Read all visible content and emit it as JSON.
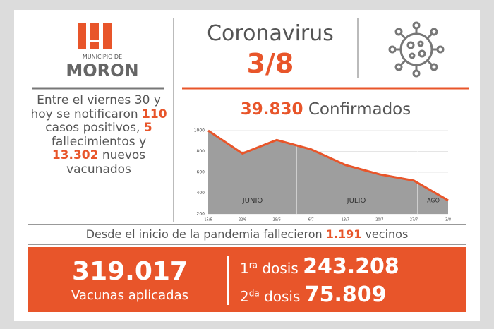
{
  "logo": {
    "small": "MUNICIPIO DE",
    "name": "MORON"
  },
  "header": {
    "title": "Coronavirus",
    "date": "3/8"
  },
  "summary": {
    "t1": "Entre el viernes 30 y hoy se notificaron ",
    "cases": "110",
    "t2": " casos positivos, ",
    "deaths": "5",
    "t3": " fallecimientos y ",
    "vaccinated": "13.302",
    "t4": " nuevos vacunados"
  },
  "confirmed": {
    "value": "39.830",
    "label": "Confirmados"
  },
  "chart": {
    "type": "line",
    "categories": [
      "15/6",
      "22/6",
      "29/6",
      "6/7",
      "13/7",
      "20/7",
      "27/7",
      "3/8"
    ],
    "values": [
      1000,
      780,
      910,
      820,
      670,
      580,
      520,
      330
    ],
    "ylim": [
      200,
      1000
    ],
    "yticks": [
      200,
      400,
      600,
      800,
      1000
    ],
    "months": [
      "JUNIO",
      "JULIO",
      "AGO"
    ],
    "grid": true,
    "color": "#e8552a"
  },
  "deaths_total": {
    "t1": "Desde el inicio de la pandemia fallecieron ",
    "value": "1.191",
    "t2": " vecinos"
  },
  "vaccines": {
    "total": "319.017",
    "total_label": "Vacunas aplicadas",
    "dose1": {
      "n": "1",
      "sup": "ra",
      "word": " dosis ",
      "value": "243.208"
    },
    "dose2": {
      "n": "2",
      "sup": "da",
      "word": " dosis ",
      "value": "75.809"
    }
  }
}
